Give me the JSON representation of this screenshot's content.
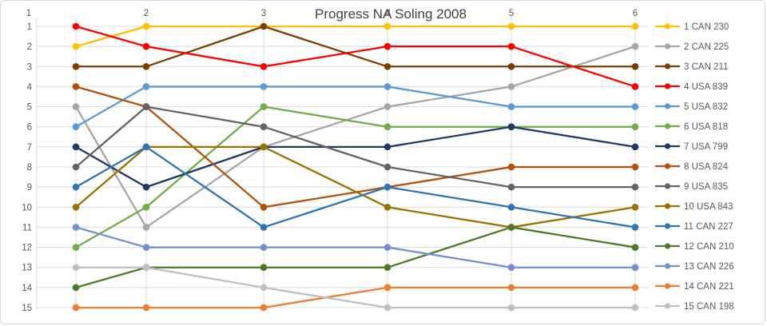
{
  "title": "Progress NA Soling 2008",
  "chart_data": {
    "type": "line",
    "title": "Progress NA Soling 2008",
    "x_axis": {
      "position": "top",
      "labels": [
        "1",
        "2",
        "3",
        "4",
        "5",
        "6"
      ]
    },
    "y_axis": {
      "position": "left",
      "labels": [
        "1",
        "2",
        "3",
        "4",
        "5",
        "6",
        "7",
        "8",
        "9",
        "10",
        "11",
        "12",
        "13",
        "14",
        "15"
      ],
      "inverted": true,
      "range": [
        1,
        15
      ]
    },
    "grid": true,
    "legend_position": "right",
    "x": [
      1,
      2,
      3,
      4,
      5,
      6
    ],
    "series": [
      {
        "name": "1 CAN 230",
        "color": "#FFC000",
        "values": [
          2,
          1,
          1,
          1,
          1,
          1
        ]
      },
      {
        "name": "2 CAN 225",
        "color": "#A6A6A6",
        "values": [
          5,
          11,
          7,
          5,
          4,
          2
        ]
      },
      {
        "name": "3 CAN 211",
        "color": "#7B3F00",
        "values": [
          3,
          3,
          1,
          3,
          3,
          3
        ]
      },
      {
        "name": "4 USA 839",
        "color": "#FF0000",
        "values": [
          1,
          2,
          3,
          2,
          2,
          4
        ]
      },
      {
        "name": "5 USA 832",
        "color": "#5B9BD5",
        "values": [
          6,
          4,
          4,
          4,
          5,
          5
        ]
      },
      {
        "name": "6 USA 818",
        "color": "#70AD47",
        "values": [
          12,
          10,
          5,
          6,
          6,
          6
        ]
      },
      {
        "name": "7 USA 799",
        "color": "#1F3864",
        "values": [
          7,
          9,
          7,
          7,
          6,
          7
        ]
      },
      {
        "name": "8 USA 824",
        "color": "#B4500A",
        "values": [
          4,
          5,
          10,
          9,
          8,
          8
        ]
      },
      {
        "name": "9 USA 835",
        "color": "#636363",
        "values": [
          8,
          5,
          6,
          8,
          9,
          9
        ]
      },
      {
        "name": "10 USA 843",
        "color": "#997300",
        "values": [
          10,
          7,
          7,
          10,
          11,
          10
        ]
      },
      {
        "name": "11 CAN 227",
        "color": "#2E75B6",
        "values": [
          9,
          7,
          11,
          9,
          10,
          11
        ]
      },
      {
        "name": "12 CAN 210",
        "color": "#4E7A27",
        "values": [
          14,
          13,
          13,
          13,
          11,
          12
        ]
      },
      {
        "name": "13 CAN 226",
        "color": "#7490D2",
        "values": [
          11,
          12,
          12,
          12,
          13,
          13
        ]
      },
      {
        "name": "14 CAN 221",
        "color": "#ED7D31",
        "values": [
          15,
          15,
          15,
          14,
          14,
          14
        ]
      },
      {
        "name": "15 CAN 198",
        "color": "#BFBFBF",
        "values": [
          13,
          13,
          14,
          15,
          15,
          15
        ]
      }
    ]
  },
  "style": {
    "grid_color": "#D9D9D9",
    "text_color": "#595959",
    "title_color": "#404040"
  }
}
